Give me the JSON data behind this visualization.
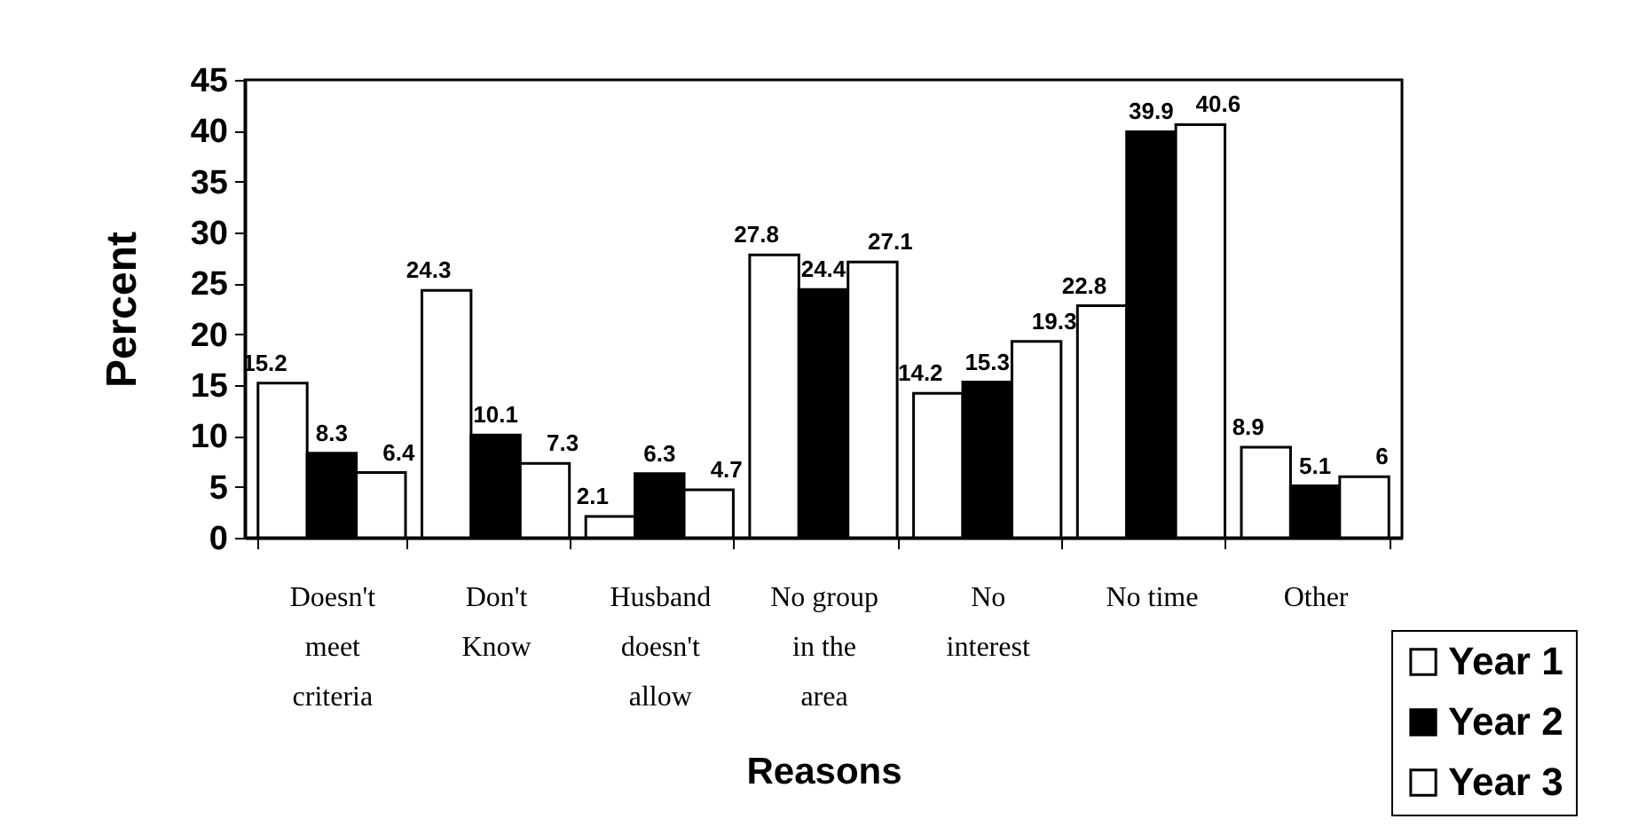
{
  "chart_data": {
    "type": "bar",
    "xlabel": "Reasons",
    "ylabel": "Percent",
    "categories": [
      "Doesn't meet criteria",
      "Don't Know",
      "Husband doesn't allow",
      "No group in the area",
      "No interest",
      "No time",
      "Other"
    ],
    "series": [
      {
        "name": "Year 1",
        "color": "#ffffff",
        "values": [
          15.2,
          24.3,
          2.1,
          27.8,
          14.2,
          22.8,
          8.9
        ]
      },
      {
        "name": "Year 2",
        "color": "#000000",
        "values": [
          8.3,
          10.1,
          6.3,
          24.4,
          15.3,
          39.9,
          5.1
        ]
      },
      {
        "name": "Year 3",
        "color": "#ffffff",
        "values": [
          6.4,
          7.3,
          4.7,
          27.1,
          19.3,
          40.6,
          6
        ]
      }
    ],
    "ylim": [
      0,
      45
    ],
    "yticks": [
      0,
      5,
      10,
      15,
      20,
      25,
      30,
      35,
      40,
      45
    ],
    "data_labels": true,
    "legend": "bottom right",
    "grid": false
  }
}
